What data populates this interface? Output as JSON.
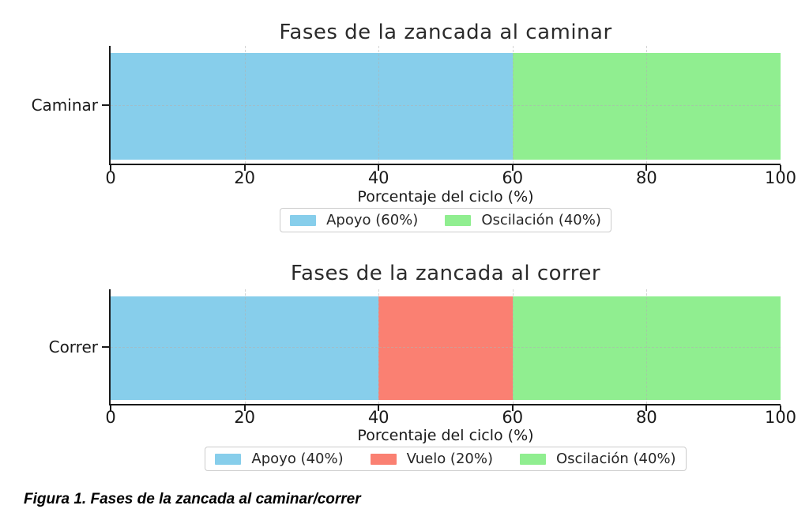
{
  "page": {
    "background": "#ffffff"
  },
  "caption": {
    "text": "Figura 1. Fases de la zancada al caminar/correr"
  },
  "colors": {
    "apoyo": "#87CEEB",
    "vuelo": "#FA8072",
    "oscilacion": "#90EE90",
    "axis": "#1a1a1a",
    "grid": "#b0b0b0",
    "legend_border": "#cccccc"
  },
  "chart_data": [
    {
      "type": "bar",
      "orientation": "horizontal",
      "stacked": true,
      "title": "Fases de la zancada al caminar",
      "category": "Caminar",
      "xlabel": "Porcentaje del ciclo (%)",
      "xlim": [
        0,
        100
      ],
      "xticks": [
        0,
        20,
        40,
        60,
        80,
        100
      ],
      "grid": "dashed",
      "legend_position": "bottom-center",
      "series": [
        {
          "name": "Apoyo",
          "value": 60,
          "color": "#87CEEB",
          "legend_label": "Apoyo (60%)"
        },
        {
          "name": "Oscilación",
          "value": 40,
          "color": "#90EE90",
          "legend_label": "Oscilación (40%)"
        }
      ]
    },
    {
      "type": "bar",
      "orientation": "horizontal",
      "stacked": true,
      "title": "Fases de la zancada al correr",
      "category": "Correr",
      "xlabel": "Porcentaje del ciclo (%)",
      "xlim": [
        0,
        100
      ],
      "xticks": [
        0,
        20,
        40,
        60,
        80,
        100
      ],
      "grid": "dashed",
      "legend_position": "bottom-center",
      "series": [
        {
          "name": "Apoyo",
          "value": 40,
          "color": "#87CEEB",
          "legend_label": "Apoyo (40%)"
        },
        {
          "name": "Vuelo",
          "value": 20,
          "color": "#FA8072",
          "legend_label": "Vuelo (20%)"
        },
        {
          "name": "Oscilación",
          "value": 40,
          "color": "#90EE90",
          "legend_label": "Oscilación (40%)"
        }
      ]
    }
  ]
}
